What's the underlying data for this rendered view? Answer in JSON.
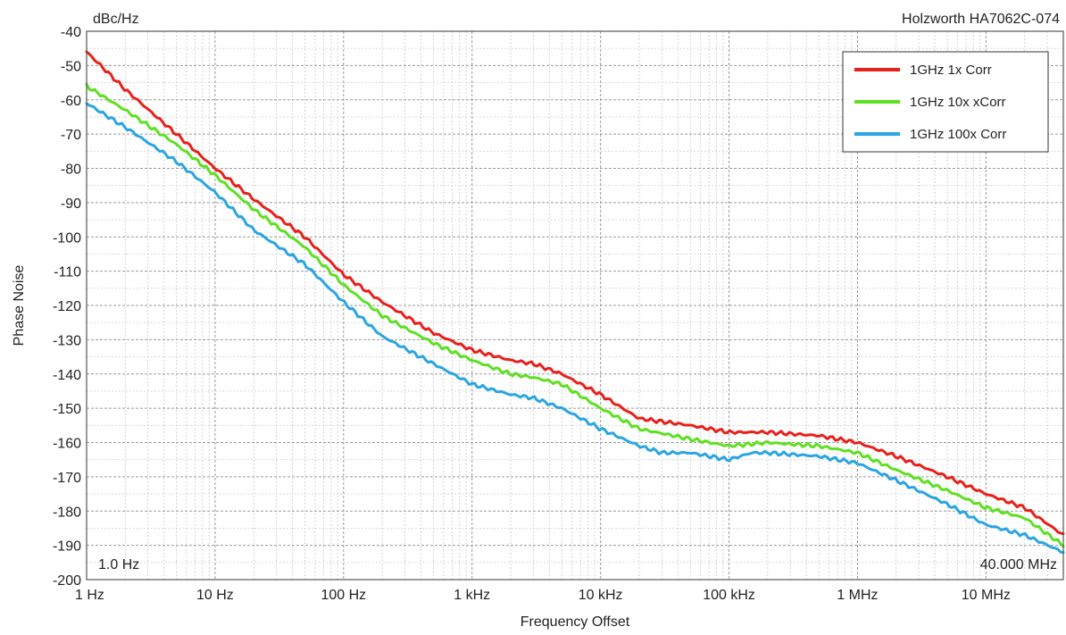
{
  "chart_data": {
    "type": "line",
    "title": "",
    "instrument": "Holzworth HA7062C-074",
    "unit_label": "dBc/Hz",
    "xlabel": "Frequency Offset",
    "ylabel": "Phase Noise",
    "x_scale": "log",
    "xlim_hz": [
      1,
      40000000
    ],
    "ylim": [
      -200,
      -40
    ],
    "y_ticks": [
      -40,
      -50,
      -60,
      -70,
      -80,
      -90,
      -100,
      -110,
      -120,
      -130,
      -140,
      -150,
      -160,
      -170,
      -180,
      -190,
      -200
    ],
    "x_ticks": [
      {
        "value": 1,
        "label": "1 Hz"
      },
      {
        "value": 10,
        "label": "10 Hz"
      },
      {
        "value": 100,
        "label": "100 Hz"
      },
      {
        "value": 1000,
        "label": "1 kHz"
      },
      {
        "value": 10000,
        "label": "10 kHz"
      },
      {
        "value": 100000,
        "label": "100 kHz"
      },
      {
        "value": 1000000,
        "label": "1 MHz"
      },
      {
        "value": 10000000,
        "label": "10 MHz"
      }
    ],
    "start_label": "1.0 Hz",
    "stop_label": "40.000 MHz",
    "grid": true,
    "legend_position": "top-right",
    "series": [
      {
        "name": "1GHz 1x Corr",
        "color": "#e8201a",
        "x": [
          1,
          2,
          5,
          10,
          20,
          50,
          100,
          200,
          500,
          1000,
          2000,
          3000,
          5000,
          10000,
          20000,
          50000,
          100000,
          200000,
          500000,
          1000000,
          2000000,
          5000000,
          10000000,
          20000000,
          40000000
        ],
        "y": [
          -46,
          -57,
          -70,
          -80,
          -89,
          -100,
          -111,
          -119,
          -128,
          -133,
          -136,
          -137,
          -140,
          -146,
          -153,
          -155,
          -157,
          -157,
          -158,
          -160,
          -164,
          -170,
          -175,
          -179,
          -187
        ]
      },
      {
        "name": "1GHz 10x xCorr",
        "color": "#5ee022",
        "x": [
          1,
          2,
          5,
          10,
          20,
          50,
          100,
          200,
          500,
          1000,
          2000,
          3000,
          5000,
          10000,
          20000,
          50000,
          100000,
          200000,
          500000,
          1000000,
          2000000,
          5000000,
          10000000,
          20000000,
          40000000
        ],
        "y": [
          -56,
          -63,
          -73,
          -82,
          -92,
          -103,
          -114,
          -123,
          -131,
          -136,
          -140,
          -141,
          -143,
          -150,
          -156,
          -159,
          -161,
          -160,
          -161,
          -163,
          -168,
          -174,
          -179,
          -182,
          -190
        ]
      },
      {
        "name": "1GHz 100x Corr",
        "color": "#2aa5e2",
        "x": [
          1,
          2,
          5,
          10,
          20,
          50,
          100,
          200,
          500,
          1000,
          2000,
          3000,
          5000,
          10000,
          20000,
          30000,
          50000,
          100000,
          150000,
          200000,
          500000,
          1000000,
          2000000,
          5000000,
          10000000,
          20000000,
          40000000
        ],
        "y": [
          -61,
          -68,
          -78,
          -87,
          -98,
          -108,
          -119,
          -129,
          -137,
          -143,
          -146,
          -147,
          -150,
          -156,
          -161,
          -163,
          -163,
          -165,
          -163,
          -163,
          -164,
          -166,
          -171,
          -178,
          -184,
          -187,
          -192
        ]
      }
    ]
  }
}
